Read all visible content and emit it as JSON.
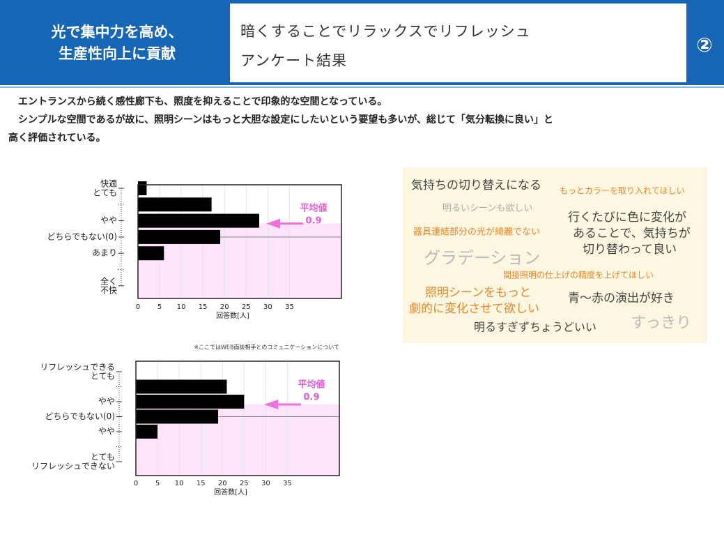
{
  "header": {
    "section": [
      "光で集中力を高め、",
      "生産性向上に貢献"
    ],
    "title": [
      "暗くすることでリラックスでリフレッシュ",
      "アンケート結果"
    ],
    "number": "②"
  },
  "body": [
    "　エントランスから続く感性廊下も、照度を抑えることで印象的な空間となっている。",
    "　シンプルな空間であるが故に、照明シーンはもっと大胆な設定にしたいという要望も多いが、総じて「気分転換に良い」と",
    "高く評価されている。"
  ],
  "chart_data": [
    {
      "type": "bar",
      "orientation": "horizontal",
      "categories": [
        "快適\nとても",
        null,
        "やや",
        "どちらでもない(0)",
        "あまり",
        null,
        "全く\n不快"
      ],
      "values": [
        2,
        17,
        28,
        19,
        6,
        0,
        0
      ],
      "color": "#000000",
      "xlim": [
        0,
        47
      ],
      "xticks": [
        0,
        5,
        10,
        15,
        20,
        25,
        30,
        35
      ],
      "x_label": "回答数[人]",
      "annotation": [
        "平均値",
        "0.9"
      ],
      "grid": true
    },
    {
      "type": "bar",
      "orientation": "horizontal",
      "note": "※ここではWEB面談相手とのコミュニケーションについて",
      "categories": [
        "リフレッシュできる\nとても",
        null,
        "やや",
        "どちらでもない(0)",
        "やや",
        null,
        "とても\nリフレッシュできない"
      ],
      "values": [
        0,
        21,
        25,
        19,
        5,
        0,
        0
      ],
      "color": "#000000",
      "xlim": [
        0,
        47
      ],
      "xticks": [
        0,
        5,
        10,
        15,
        20,
        25,
        30,
        35
      ],
      "x_label": "回答数[人]",
      "annotation": [
        "平均値",
        "0.9"
      ],
      "grid": true
    }
  ],
  "word_cloud": [
    "気持ちの切り替えになる",
    "もっとカラーを取り入れてほしい",
    "明るいシーンも欲しい",
    "行くたびに色に変化が",
    "あることで、気持ちが",
    "切り替わって良い",
    "器具連結部分の光が綺麗でない",
    "グラデーション",
    "間接照明の仕上げの精度を上げてほしい",
    "照明シーンをもっと",
    "劇的に変化させて欲しい",
    "青～赤の演出が好き",
    "明るすぎずちょうどいい",
    "すっきり"
  ]
}
